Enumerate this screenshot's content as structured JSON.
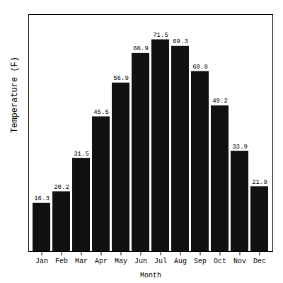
{
  "chart_data": {
    "type": "bar",
    "categories": [
      "Jan",
      "Feb",
      "Mar",
      "Apr",
      "May",
      "Jun",
      "Jul",
      "Aug",
      "Sep",
      "Oct",
      "Nov",
      "Dec"
    ],
    "values": [
      16.3,
      20.2,
      31.5,
      45.5,
      56.9,
      66.9,
      71.5,
      69.3,
      60.8,
      49.2,
      33.9,
      21.9
    ],
    "color": "#111111",
    "xlabel": "Month",
    "ylabel": "Temperature (F)",
    "ylim": [
      0,
      80
    ],
    "grid": false,
    "data_labels": true,
    "tick_labels": "x"
  }
}
